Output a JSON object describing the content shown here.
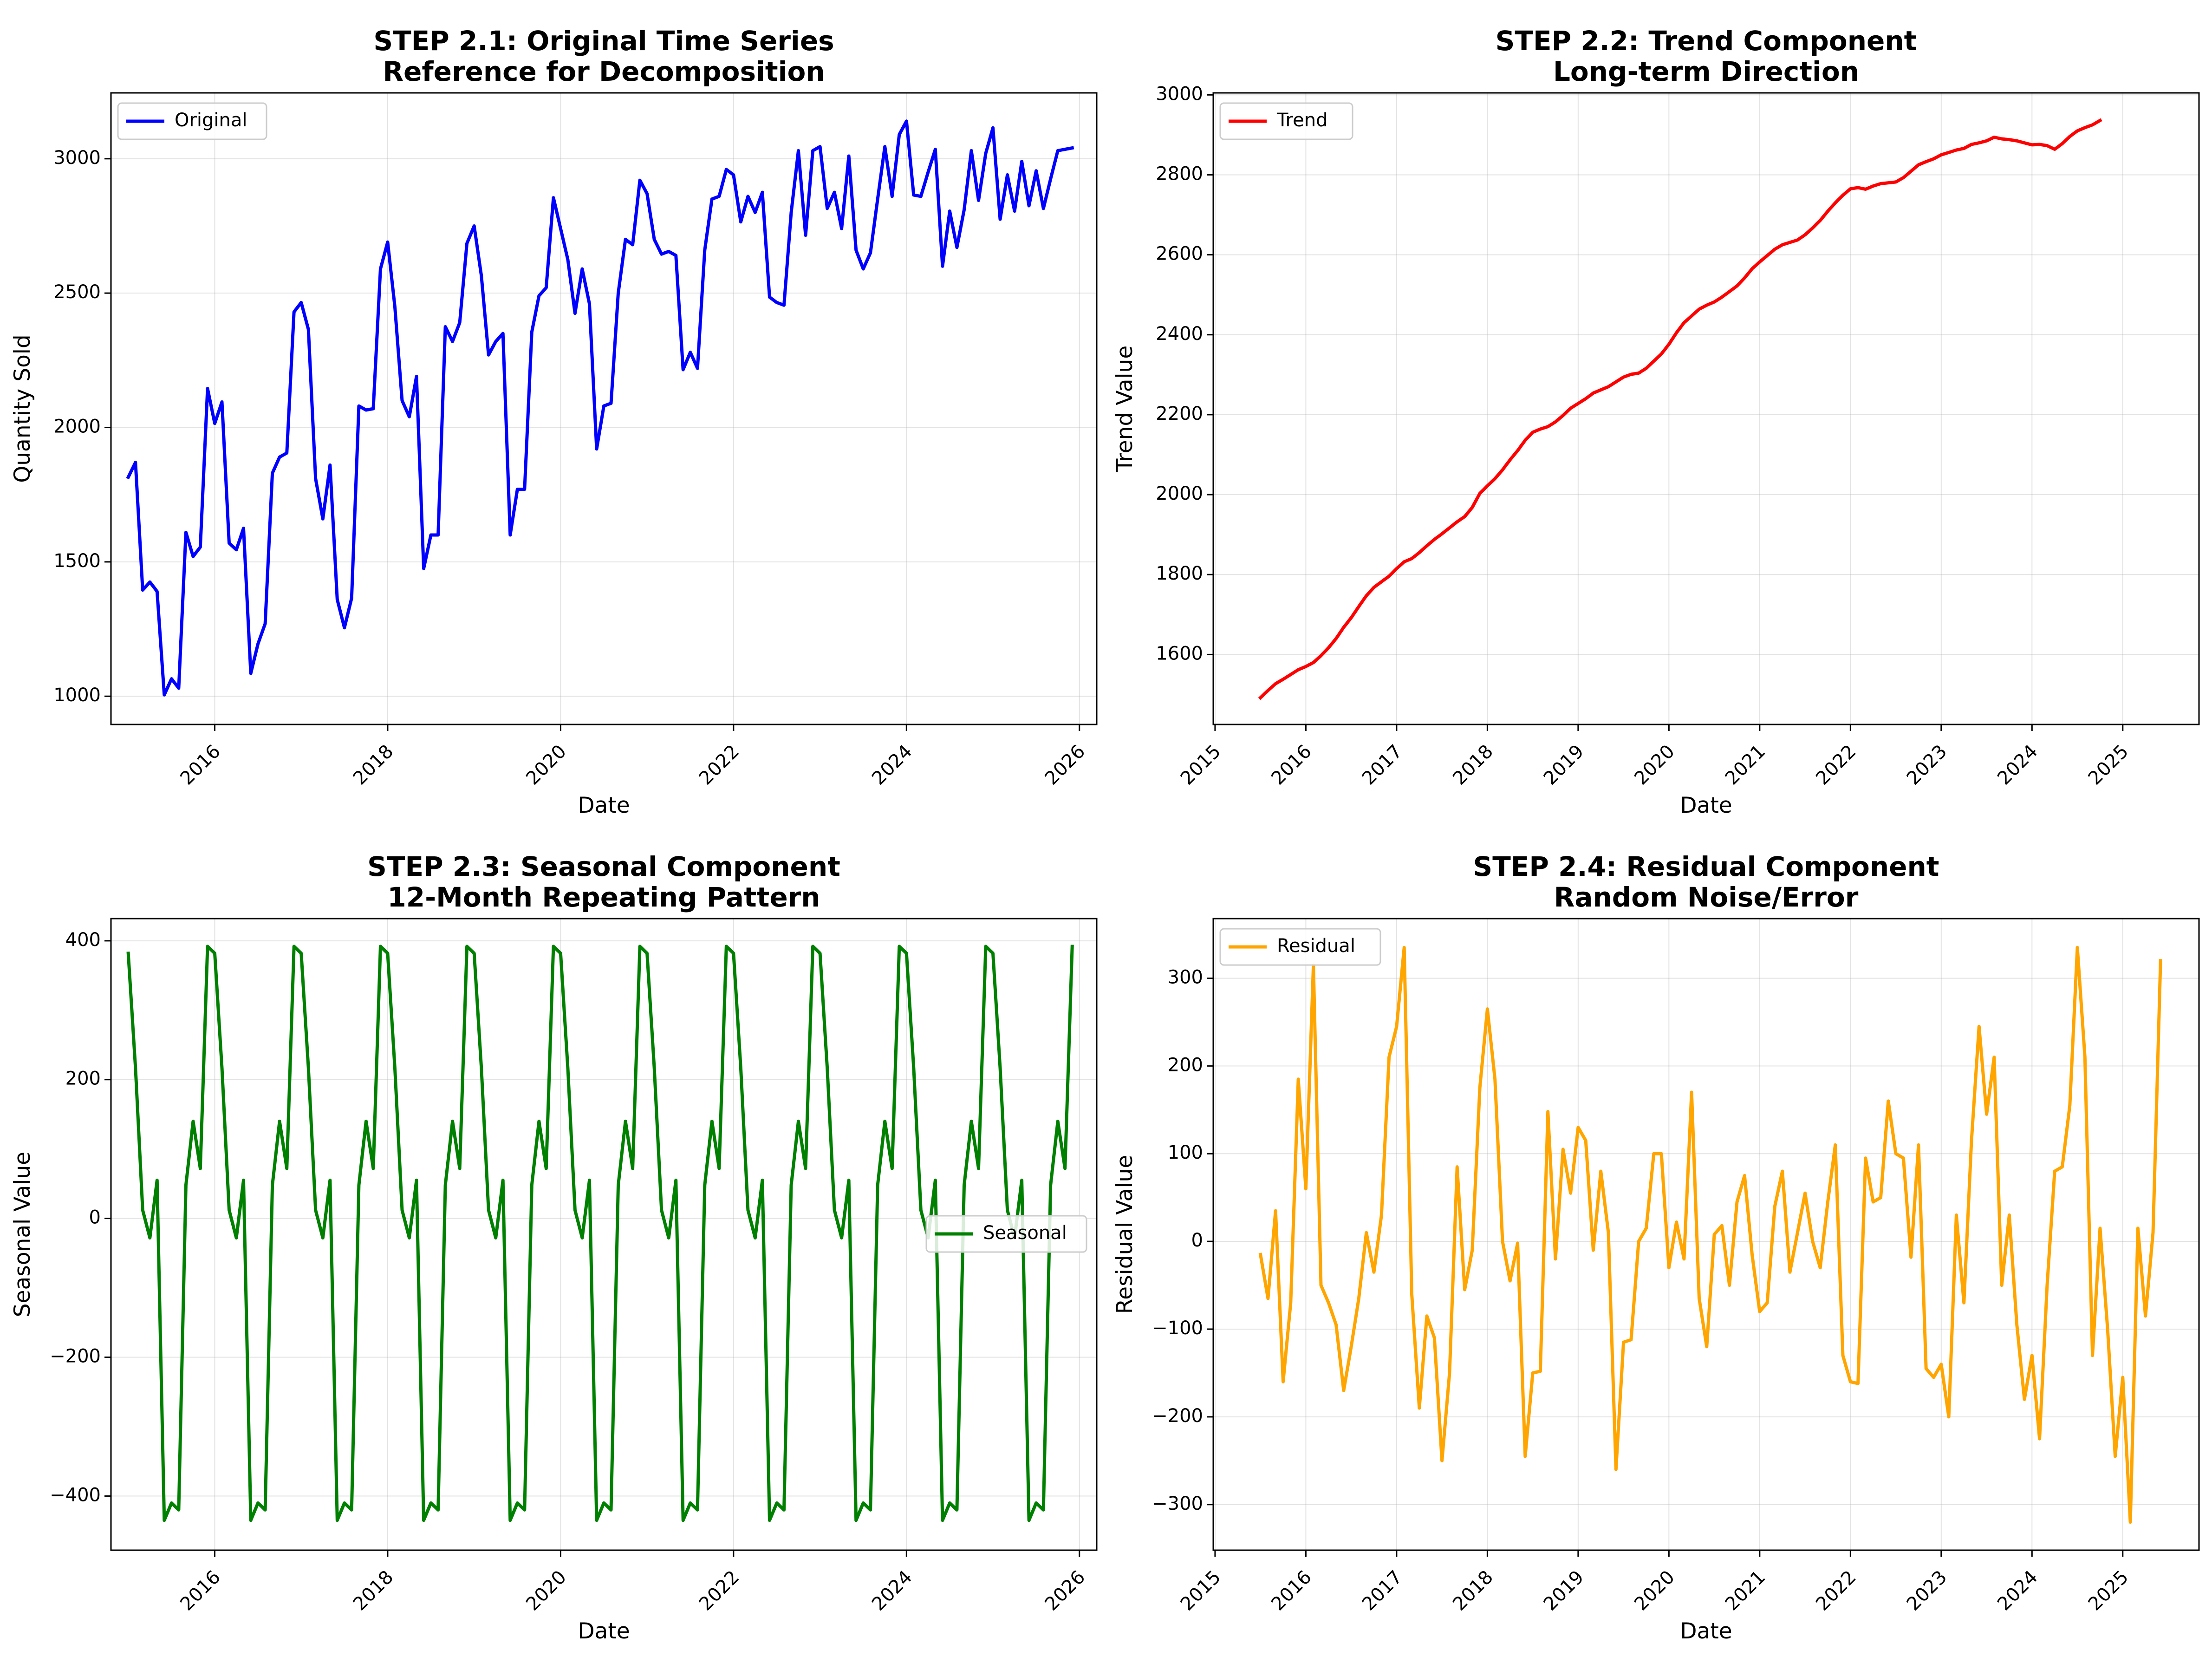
{
  "chart_data": [
    {
      "id": "original",
      "type": "line",
      "title_line1": "STEP 2.1: Original Time Series",
      "title_line2": "Reference for Decomposition",
      "xlabel": "Date",
      "ylabel": "Quantity Sold",
      "x_start": "2015-01",
      "x_step": "1 month",
      "xlim": [
        2014.8,
        2026.2
      ],
      "ylim": [
        895,
        3245
      ],
      "xticks": [
        2016,
        2018,
        2020,
        2022,
        2024,
        2026
      ],
      "yticks": [
        1000,
        1500,
        2000,
        2500,
        3000
      ],
      "grid": true,
      "legend_placement": "upper-left",
      "series": [
        {
          "name": "Original",
          "color": "#0000ff",
          "values": [
            1815,
            1870,
            1395,
            1425,
            1390,
            1005,
            1065,
            1030,
            1610,
            1520,
            1555,
            2145,
            2015,
            2095,
            1570,
            1545,
            1625,
            1085,
            1195,
            1270,
            1830,
            1890,
            1905,
            2430,
            2465,
            2365,
            1810,
            1660,
            1860,
            1360,
            1255,
            1365,
            2080,
            2065,
            2070,
            2590,
            2690,
            2450,
            2100,
            2040,
            2190,
            1475,
            1600,
            1600,
            2375,
            2320,
            2390,
            2685,
            2750,
            2565,
            2270,
            2320,
            2350,
            1600,
            1770,
            1770,
            2355,
            2490,
            2520,
            2855,
            2740,
            2625,
            2425,
            2590,
            2460,
            1920,
            2080,
            2090,
            2500,
            2700,
            2680,
            2920,
            2870,
            2700,
            2645,
            2655,
            2640,
            2215,
            2280,
            2220,
            2660,
            2850,
            2860,
            2960,
            2940,
            2765,
            2860,
            2800,
            2875,
            2485,
            2465,
            2455,
            2800,
            3030,
            2715,
            3030,
            3045,
            2815,
            2875,
            2740,
            3010,
            2660,
            2590,
            2650,
            2850,
            3045,
            2860,
            3090,
            3140,
            2865,
            2860,
            2950,
            3035,
            2600,
            2805,
            2670,
            2810,
            3030,
            2845,
            3020,
            3115,
            2775,
            2940,
            2805,
            2990,
            2825,
            2955,
            2815,
            2925,
            3030,
            3035,
            3040
          ]
        }
      ]
    },
    {
      "id": "trend",
      "type": "line",
      "title_line1": "STEP 2.2: Trend Component",
      "title_line2": "Long-term Direction",
      "xlabel": "Date",
      "ylabel": "Trend Value",
      "x_start": "2015-07",
      "x_step": "1 month",
      "xlim": [
        2014.98,
        2025.84
      ],
      "ylim": [
        1425,
        3005
      ],
      "xticks": [
        2015,
        2016,
        2017,
        2018,
        2019,
        2020,
        2021,
        2022,
        2023,
        2024,
        2025
      ],
      "yticks": [
        1600,
        1800,
        2000,
        2200,
        2400,
        2600,
        2800,
        3000
      ],
      "grid": true,
      "legend_placement": "upper-left",
      "series": [
        {
          "name": "Trend",
          "color": "#ff0000",
          "values": [
            1492,
            1510,
            1527,
            1538,
            1550,
            1562,
            1570,
            1580,
            1597,
            1617,
            1640,
            1668,
            1692,
            1720,
            1747,
            1768,
            1782,
            1796,
            1815,
            1832,
            1840,
            1855,
            1872,
            1888,
            1902,
            1917,
            1932,
            1945,
            1968,
            2003,
            2022,
            2040,
            2062,
            2087,
            2110,
            2136,
            2156,
            2164,
            2170,
            2182,
            2198,
            2216,
            2228,
            2240,
            2254,
            2262,
            2270,
            2282,
            2294,
            2301,
            2304,
            2316,
            2334,
            2352,
            2376,
            2405,
            2430,
            2447,
            2464,
            2474,
            2482,
            2494,
            2508,
            2522,
            2542,
            2565,
            2582,
            2598,
            2614,
            2625,
            2631,
            2637,
            2650,
            2667,
            2686,
            2709,
            2730,
            2749,
            2765,
            2768,
            2764,
            2772,
            2778,
            2780,
            2782,
            2793,
            2809,
            2825,
            2833,
            2840,
            2850,
            2856,
            2862,
            2866,
            2876,
            2880,
            2885,
            2894,
            2890,
            2888,
            2885,
            2880,
            2875,
            2876,
            2873,
            2864,
            2878,
            2896,
            2910,
            2918,
            2925,
            2936
          ]
        }
      ]
    },
    {
      "id": "seasonal",
      "type": "line",
      "title_line1": "STEP 2.3: Seasonal Component",
      "title_line2": "12-Month Repeating Pattern",
      "xlabel": "Date",
      "ylabel": "Seasonal Value",
      "x_start": "2015-01",
      "x_step": "1 month",
      "xlim": [
        2014.8,
        2026.2
      ],
      "ylim": [
        -478,
        432
      ],
      "xticks": [
        2016,
        2018,
        2020,
        2022,
        2024,
        2026
      ],
      "yticks": [
        -400,
        -200,
        0,
        200,
        400
      ],
      "grid": true,
      "legend_placement": "center-right",
      "series": [
        {
          "name": "Seasonal",
          "color": "#008000",
          "repeat_pattern": [
            382,
            217,
            12,
            -28,
            55,
            -435,
            -410,
            -420,
            48,
            140,
            72,
            392
          ],
          "repeat_count": 11
        }
      ]
    },
    {
      "id": "residual",
      "type": "line",
      "title_line1": "STEP 2.4: Residual Component",
      "title_line2": "Random Noise/Error",
      "xlabel": "Date",
      "ylabel": "Residual Value",
      "x_start": "2015-07",
      "x_step": "1 month",
      "xlim": [
        2014.98,
        2025.84
      ],
      "ylim": [
        -352,
        368
      ],
      "xticks": [
        2015,
        2016,
        2017,
        2018,
        2019,
        2020,
        2021,
        2022,
        2023,
        2024,
        2025
      ],
      "yticks": [
        -300,
        -200,
        -100,
        0,
        100,
        200,
        300
      ],
      "grid": true,
      "legend_placement": "upper-left",
      "series": [
        {
          "name": "Residual",
          "color": "#ffa500",
          "values": [
            -15,
            -65,
            35,
            -160,
            -70,
            185,
            60,
            315,
            -50,
            -70,
            -95,
            -170,
            -120,
            -65,
            10,
            -35,
            30,
            210,
            245,
            335,
            -60,
            -190,
            -85,
            -110,
            -250,
            -150,
            85,
            -55,
            -10,
            175,
            265,
            185,
            0,
            -45,
            -2,
            -245,
            -150,
            -148,
            148,
            -20,
            105,
            55,
            130,
            115,
            -10,
            80,
            10,
            -260,
            -115,
            -112,
            0,
            15,
            100,
            100,
            -30,
            22,
            -20,
            170,
            -65,
            -120,
            8,
            18,
            -50,
            45,
            75,
            -15,
            -80,
            -70,
            40,
            80,
            -35,
            10,
            55,
            0,
            -30,
            45,
            110,
            -130,
            -160,
            -162,
            95,
            45,
            50,
            160,
            100,
            95,
            -18,
            110,
            -145,
            -155,
            -140,
            -200,
            30,
            -70,
            115,
            245,
            145,
            210,
            -50,
            30,
            -95,
            -180,
            -130,
            -225,
            -50,
            80,
            85,
            155,
            335,
            210,
            -130,
            15,
            -100,
            -245,
            -155,
            -320,
            15,
            -85,
            10,
            320
          ]
        }
      ]
    }
  ]
}
